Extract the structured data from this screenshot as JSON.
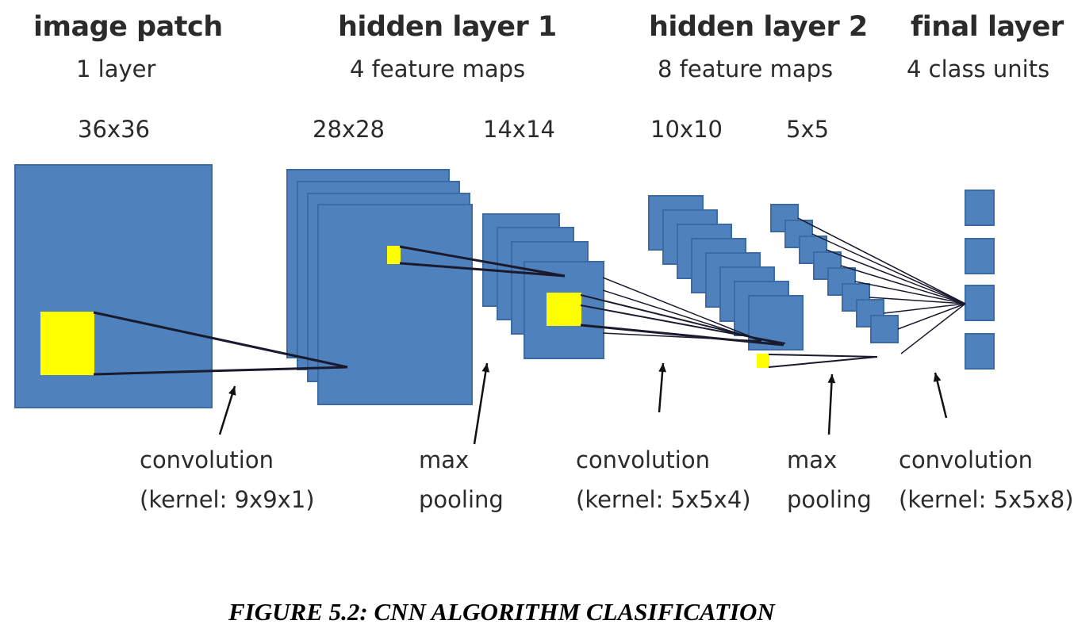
{
  "columns": [
    {
      "id": "image-patch",
      "title": "image patch",
      "subtitle": "1 layer"
    },
    {
      "id": "hidden-layer-1",
      "title": "hidden layer 1",
      "subtitle": "4 feature maps"
    },
    {
      "id": "hidden-layer-2",
      "title": "hidden layer 2",
      "subtitle": "8 feature maps"
    },
    {
      "id": "final-layer",
      "title": "final layer",
      "subtitle": "4 class units"
    }
  ],
  "sizes": [
    "36x36",
    "28x28",
    "14x14",
    "10x10",
    "5x5"
  ],
  "operations": [
    {
      "line1": "convolution",
      "line2": "(kernel: 9x9x1)"
    },
    {
      "line1": "max",
      "line2": "pooling"
    },
    {
      "line1": "convolution",
      "line2": "(kernel: 5x5x4)"
    },
    {
      "line1": "max",
      "line2": "pooling"
    },
    {
      "line1": "convolution",
      "line2": "(kernel: 5x5x8)"
    }
  ],
  "caption": "FIGURE 5.2: CNN ALGORITHM CLASIFICATION",
  "colors": {
    "map_fill": "#4f81bd",
    "map_stroke": "#3b6aa5",
    "kernel": "#ffff00",
    "line": "#1a1a2e",
    "text": "#2b2b2b"
  }
}
